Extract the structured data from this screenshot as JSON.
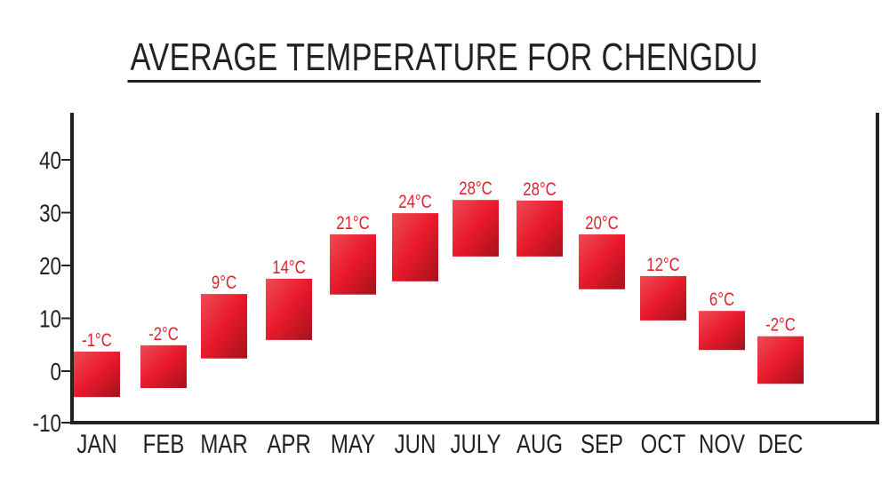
{
  "chart_data": {
    "type": "bar",
    "subtype": "floating-range",
    "title": "AVERAGE TEMPERATURE FOR CHENGDU",
    "xlabel": "",
    "ylabel": "",
    "ylim": [
      -10,
      48
    ],
    "yticks": [
      -10,
      0,
      10,
      20,
      30,
      40
    ],
    "grid": false,
    "categories": [
      "JAN",
      "FEB",
      "MAR",
      "APR",
      "MAY",
      "JUN",
      "JULY",
      "AUG",
      "SEP",
      "OCT",
      "NOV",
      "DEC"
    ],
    "ranges": [
      [
        -4.9,
        3.7
      ],
      [
        -3.2,
        4.9
      ],
      [
        2.4,
        14.6
      ],
      [
        5.9,
        17.5
      ],
      [
        14.5,
        25.9
      ],
      [
        17.0,
        29.9
      ],
      [
        21.7,
        32.4
      ],
      [
        21.7,
        32.3
      ],
      [
        15.5,
        25.9
      ],
      [
        9.6,
        18.0
      ],
      [
        4.0,
        11.4
      ],
      [
        -2.4,
        6.6
      ]
    ],
    "data_labels": [
      "-1°C",
      "-2°C",
      "9°C",
      "14°C",
      "21°C",
      "24°C",
      "28°C",
      "28°C",
      "20°C",
      "12°C",
      "6°C",
      "-2°C"
    ],
    "colors": {
      "bar_light": "#ef4a55",
      "bar_mid": "#e8192b",
      "bar_dark": "#a5121b",
      "label": "#e3212d",
      "axis": "#222222"
    }
  }
}
